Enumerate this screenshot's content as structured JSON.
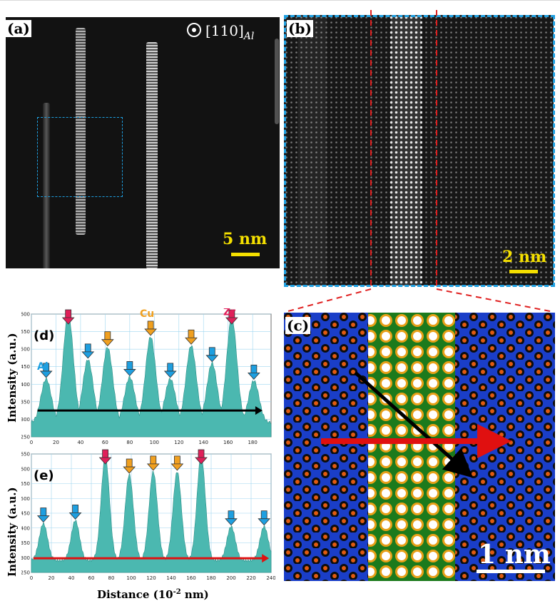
{
  "panels": {
    "a": {
      "label": "(a)",
      "zone_axis": "[110]",
      "zone_axis_sub": "Al",
      "scale": "5 nm"
    },
    "b": {
      "label": "(b)",
      "scale": "2 nm"
    },
    "c": {
      "label": "(c)",
      "scale": "1 nm"
    },
    "d": {
      "label": "(d)"
    },
    "e": {
      "label": "(e)"
    }
  },
  "annotations": {
    "al": "Al",
    "cu": "Cu",
    "zr": "Zr"
  },
  "colors": {
    "al_arrow": "#1e9fe0",
    "cu_arrow": "#f0a020",
    "zr_arrow": "#e0205a",
    "profile_fill": "#4bb8b0",
    "scale_yellow": "#f5e000"
  },
  "axes": {
    "ylabel": "Intensity (a.u.)",
    "xlabel": "Distance (10",
    "xlabel_sup": "-2",
    "xlabel_end": " nm)"
  },
  "chart_data": [
    {
      "type": "area",
      "panel": "d",
      "xlim": [
        0,
        195
      ],
      "ylim": [
        250,
        600
      ],
      "xticks": [
        0,
        20,
        40,
        60,
        80,
        100,
        120,
        140,
        160,
        180
      ],
      "yticks": [
        250,
        300,
        350,
        400,
        450,
        500,
        550,
        600
      ],
      "grid": true,
      "peaks": [
        {
          "x": 12,
          "y": 415,
          "element": "Al"
        },
        {
          "x": 30,
          "y": 600,
          "element": "Zr"
        },
        {
          "x": 46,
          "y": 470,
          "element": "Al"
        },
        {
          "x": 62,
          "y": 505,
          "element": "Cu"
        },
        {
          "x": 80,
          "y": 420,
          "element": "Al"
        },
        {
          "x": 97,
          "y": 535,
          "element": "Cu"
        },
        {
          "x": 113,
          "y": 415,
          "element": "Al"
        },
        {
          "x": 130,
          "y": 510,
          "element": "Cu"
        },
        {
          "x": 147,
          "y": 460,
          "element": "Al"
        },
        {
          "x": 163,
          "y": 590,
          "element": "Zr"
        },
        {
          "x": 181,
          "y": 410,
          "element": "Al"
        }
      ],
      "arrow": {
        "from": 5,
        "to": 188,
        "y": 325,
        "color": "#000000"
      }
    },
    {
      "type": "area",
      "panel": "e",
      "xlim": [
        0,
        240
      ],
      "ylim": [
        250,
        650
      ],
      "xticks": [
        0,
        20,
        40,
        60,
        80,
        100,
        120,
        140,
        160,
        180,
        200,
        220,
        240
      ],
      "yticks": [
        250,
        300,
        350,
        400,
        450,
        500,
        550,
        600,
        650
      ],
      "grid": true,
      "peaks": [
        {
          "x": 12,
          "y": 415,
          "element": "Al"
        },
        {
          "x": 44,
          "y": 425,
          "element": "Al"
        },
        {
          "x": 74,
          "y": 640,
          "element": "Zr"
        },
        {
          "x": 98,
          "y": 580,
          "element": "Cu"
        },
        {
          "x": 122,
          "y": 590,
          "element": "Cu"
        },
        {
          "x": 146,
          "y": 590,
          "element": "Cu"
        },
        {
          "x": 170,
          "y": 645,
          "element": "Zr"
        },
        {
          "x": 200,
          "y": 405,
          "element": "Al"
        },
        {
          "x": 233,
          "y": 405,
          "element": "Al"
        }
      ],
      "arrow": {
        "from": 2,
        "to": 238,
        "y": 298,
        "color": "#e01010"
      }
    }
  ]
}
